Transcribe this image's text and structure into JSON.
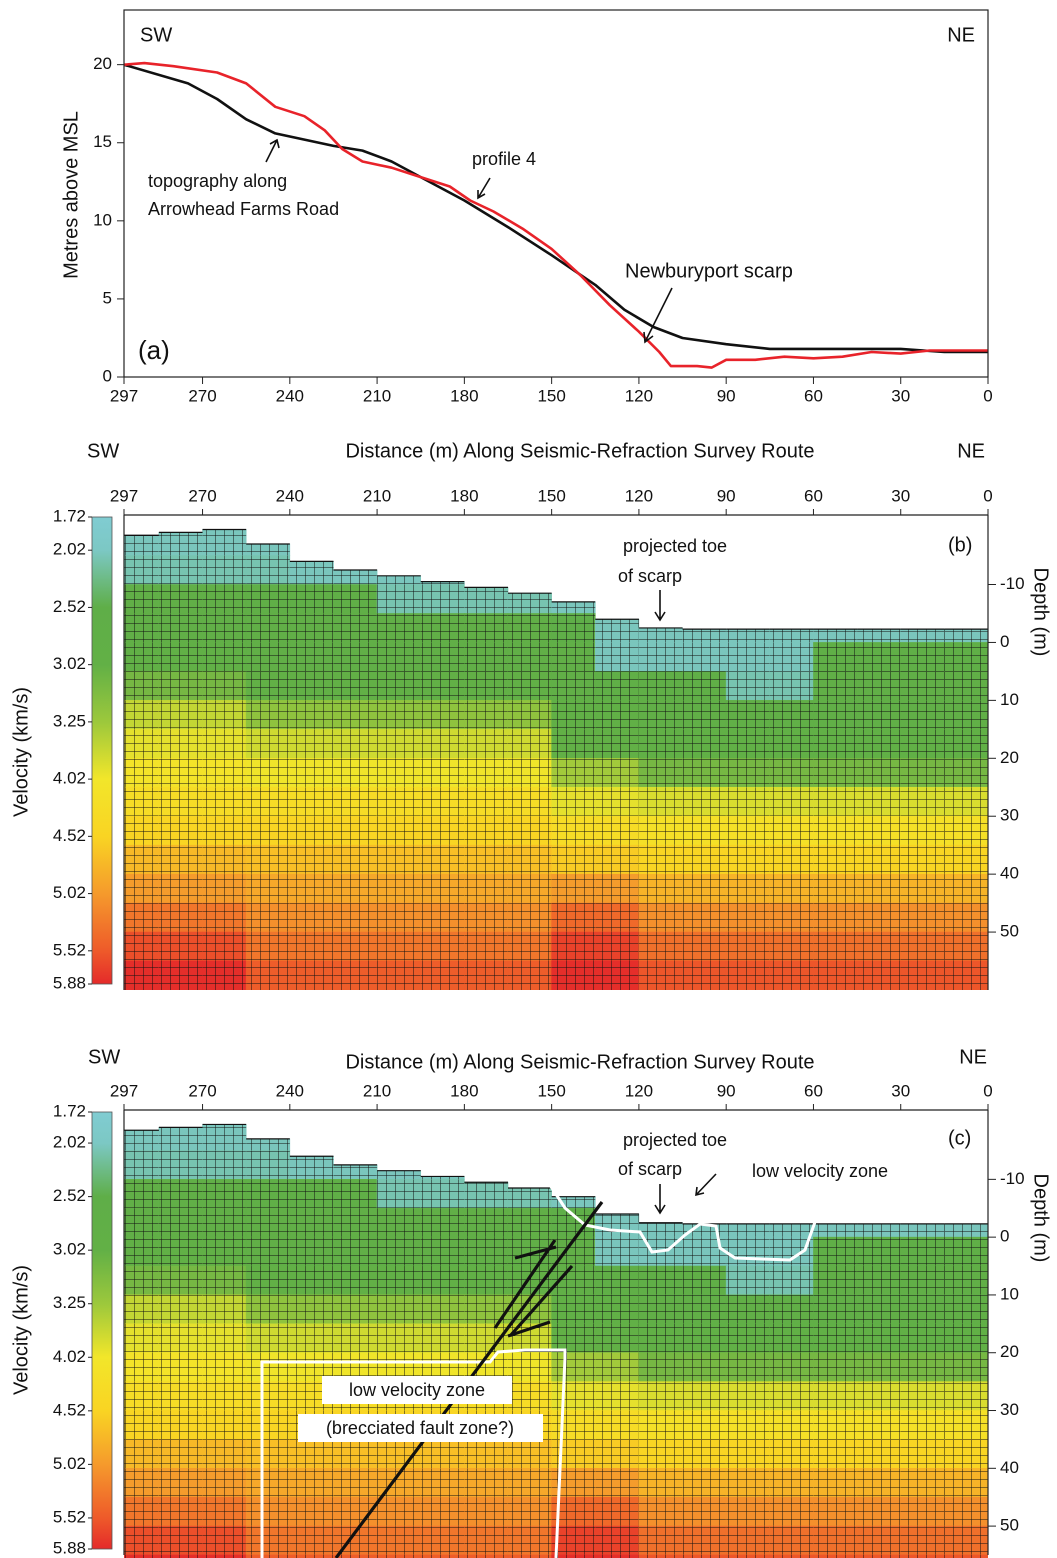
{
  "chart_data": [
    {
      "type": "line",
      "y_label": "Metres above MSL",
      "left_label": "SW",
      "right_label": "NE",
      "panel_label": "(a)",
      "annotations": [
        "topography along",
        "Arrowhead Farms Road",
        "profile 4",
        "Newburyport scarp"
      ],
      "xlim": [
        297,
        0
      ],
      "xticks": [
        297,
        270,
        240,
        210,
        180,
        150,
        120,
        90,
        60,
        30,
        0
      ],
      "ylim": [
        0,
        23.5
      ],
      "yticks": [
        0,
        5,
        10,
        15,
        20
      ],
      "series": [
        {
          "color": "#111111",
          "x": [
            297,
            275,
            265,
            255,
            245,
            235,
            225,
            215,
            205,
            195,
            180,
            165,
            150,
            135,
            125,
            115,
            105,
            90,
            75,
            60,
            30,
            15,
            0
          ],
          "values": [
            20,
            18.8,
            17.8,
            16.5,
            15.6,
            15.2,
            14.8,
            14.5,
            13.8,
            12.8,
            11.3,
            9.6,
            7.8,
            5.9,
            4.3,
            3.2,
            2.5,
            2.1,
            1.8,
            1.8,
            1.8,
            1.6,
            1.6
          ]
        },
        {
          "color": "#e8232a",
          "x": [
            297,
            290,
            280,
            265,
            255,
            245,
            235,
            228,
            222,
            215,
            205,
            195,
            185,
            178,
            170,
            160,
            150,
            140,
            130,
            120,
            113,
            109,
            100,
            95,
            90,
            80,
            70,
            60,
            50,
            40,
            30,
            20,
            10,
            0
          ],
          "values": [
            20,
            20.1,
            19.9,
            19.5,
            18.8,
            17.3,
            16.7,
            15.8,
            14.6,
            13.8,
            13.4,
            12.8,
            12.2,
            11.3,
            10.6,
            9.5,
            8.2,
            6.5,
            4.6,
            2.9,
            1.6,
            0.7,
            0.7,
            0.6,
            1.1,
            1.1,
            1.3,
            1.2,
            1.3,
            1.6,
            1.5,
            1.7,
            1.7,
            1.7
          ]
        }
      ]
    },
    {
      "type": "heatmap",
      "x_label": "Distance (m) Along Seismic-Refraction Survey Route",
      "left_label": "SW",
      "right_label": "NE",
      "y_label": "Depth (m)",
      "panel_label": "(b)",
      "annotations": [
        "projected toe",
        "of scarp"
      ],
      "xlim": [
        297,
        0
      ],
      "xticks": [
        297,
        270,
        240,
        210,
        180,
        150,
        120,
        90,
        60,
        30,
        0
      ],
      "ylim": [
        60,
        -22
      ],
      "yticks": [
        -10,
        0,
        10,
        20,
        30,
        40,
        50
      ],
      "colorbar": {
        "label": "Velocity (km/s)",
        "ticks": [
          1.72,
          2.02,
          2.52,
          3.02,
          3.25,
          4.02,
          4.52,
          5.02,
          5.52,
          5.88
        ],
        "colors": [
          "#80ccd2",
          "#7cc8c4",
          "#5fae48",
          "#62b046",
          "#9cc83c",
          "#f2e62a",
          "#f9d423",
          "#f59a2c",
          "#ee5a2a",
          "#e42a2a"
        ]
      },
      "x_edges": [
        297,
        285,
        270,
        255,
        240,
        225,
        210,
        195,
        180,
        165,
        150,
        135,
        120,
        105,
        90,
        75,
        60,
        45,
        30,
        15,
        0
      ],
      "depth_edges": [
        -20,
        -15,
        -10,
        -5,
        0,
        5,
        10,
        15,
        20,
        25,
        30,
        35,
        40,
        45,
        50,
        55,
        60
      ],
      "surface": [
        -18.5,
        -19,
        -19.5,
        -17,
        -14,
        -12.5,
        -11.5,
        -10.5,
        -9.5,
        -8.5,
        -7,
        -4,
        -2.5,
        -2.3,
        -2.3,
        -2.3,
        -2.3,
        -2.3,
        -2.3,
        -2.3
      ],
      "values": [
        [
          2.05,
          2.05,
          2.05,
          2.05,
          null,
          null,
          null,
          null,
          null,
          null,
          null,
          null,
          null,
          null,
          null,
          null,
          null,
          null,
          null,
          null
        ],
        [
          2.1,
          2.1,
          2.1,
          2.1,
          2.05,
          2.05,
          2.05,
          2.05,
          null,
          null,
          null,
          null,
          null,
          null,
          null,
          null,
          null,
          null,
          null,
          null
        ],
        [
          2.8,
          2.8,
          2.8,
          2.7,
          2.7,
          2.7,
          2.1,
          2.1,
          2.1,
          2.1,
          2.05,
          null,
          null,
          null,
          null,
          null,
          null,
          null,
          null,
          null
        ],
        [
          2.85,
          2.85,
          2.85,
          2.8,
          2.8,
          2.8,
          2.8,
          2.8,
          2.8,
          2.8,
          2.6,
          2.05,
          2.05,
          2.05,
          2.05,
          2.05,
          2.05,
          2.05,
          2.05,
          2.05
        ],
        [
          2.9,
          2.9,
          2.9,
          2.85,
          2.85,
          2.85,
          2.85,
          2.85,
          2.85,
          2.85,
          2.8,
          2.05,
          2.05,
          2.05,
          2.05,
          2.05,
          2.7,
          2.7,
          2.7,
          2.7
        ],
        [
          3.1,
          3.1,
          3.1,
          2.95,
          2.95,
          2.95,
          2.95,
          2.95,
          2.95,
          2.95,
          2.85,
          2.7,
          2.7,
          2.7,
          2.1,
          2.1,
          2.8,
          2.8,
          2.8,
          2.8
        ],
        [
          3.6,
          3.6,
          3.6,
          3.2,
          3.2,
          3.2,
          3.2,
          3.2,
          3.2,
          3.2,
          2.9,
          2.9,
          2.85,
          2.85,
          2.85,
          2.85,
          2.85,
          2.85,
          2.85,
          2.85
        ],
        [
          3.9,
          3.9,
          3.9,
          3.7,
          3.7,
          3.7,
          3.7,
          3.7,
          3.7,
          3.7,
          3,
          3,
          2.9,
          2.9,
          2.9,
          2.9,
          2.9,
          2.9,
          2.9,
          2.9
        ],
        [
          4.1,
          4.1,
          4.1,
          4,
          4,
          4,
          4,
          4,
          4,
          4,
          3.3,
          3.3,
          3.1,
          3.1,
          3.1,
          3.1,
          3.1,
          3.1,
          3.1,
          3.1
        ],
        [
          4.3,
          4.3,
          4.3,
          4.3,
          4.3,
          4.3,
          4.3,
          4.3,
          4.3,
          4.3,
          3.9,
          3.9,
          3.8,
          3.8,
          3.8,
          3.8,
          3.8,
          3.8,
          3.8,
          3.8
        ],
        [
          4.5,
          4.5,
          4.5,
          4.5,
          4.5,
          4.5,
          4.5,
          4.5,
          4.5,
          4.5,
          4.3,
          4.3,
          4.2,
          4.2,
          4.2,
          4.2,
          4.2,
          4.2,
          4.2,
          4.2
        ],
        [
          4.75,
          4.75,
          4.75,
          4.7,
          4.7,
          4.7,
          4.7,
          4.7,
          4.7,
          4.7,
          4.6,
          4.6,
          4.5,
          4.5,
          4.5,
          4.5,
          4.5,
          4.5,
          4.5,
          4.5
        ],
        [
          5,
          5,
          5,
          4.9,
          4.9,
          4.9,
          4.9,
          4.9,
          4.9,
          4.9,
          5,
          5,
          4.8,
          4.8,
          4.8,
          4.8,
          4.8,
          4.8,
          4.8,
          4.8
        ],
        [
          5.3,
          5.3,
          5.3,
          5.1,
          5.1,
          5.1,
          5.1,
          5.1,
          5.1,
          5.1,
          5.4,
          5.4,
          5.1,
          5.1,
          5.1,
          5.1,
          5.1,
          5.1,
          5.1,
          5.1
        ],
        [
          5.6,
          5.6,
          5.6,
          5.3,
          5.3,
          5.3,
          5.3,
          5.3,
          5.3,
          5.3,
          5.7,
          5.7,
          5.35,
          5.35,
          5.35,
          5.35,
          5.35,
          5.35,
          5.35,
          5.35
        ],
        [
          5.85,
          5.85,
          5.85,
          5.5,
          5.5,
          5.5,
          5.5,
          5.5,
          5.5,
          5.5,
          5.85,
          5.85,
          5.55,
          5.55,
          5.55,
          5.55,
          5.55,
          5.55,
          5.55,
          5.55
        ]
      ]
    },
    {
      "type": "heatmap",
      "x_label": "Distance (m) Along Seismic-Refraction Survey Route",
      "left_label": "SW",
      "right_label": "NE",
      "y_label": "Depth (m)",
      "panel_label": "(c)",
      "annotations": [
        "projected toe",
        "of scarp",
        "low velocity zone",
        "low velocity zone",
        "(brecciated fault zone?)"
      ],
      "xlim": [
        297,
        0
      ],
      "xticks": [
        297,
        270,
        240,
        210,
        180,
        150,
        120,
        90,
        60,
        30,
        0
      ],
      "ylim": [
        55,
        -22
      ],
      "yticks": [
        -10,
        0,
        10,
        20,
        30,
        40,
        50
      ],
      "colorbar": {
        "label": "Velocity (km/s)",
        "ticks": [
          1.72,
          2.02,
          2.52,
          3.02,
          3.25,
          4.02,
          4.52,
          5.02,
          5.52,
          5.88
        ],
        "colors": [
          "#80ccd2",
          "#7cc8c4",
          "#5fae48",
          "#62b046",
          "#9cc83c",
          "#f2e62a",
          "#f9d423",
          "#f59a2c",
          "#ee5a2a",
          "#e42a2a"
        ]
      },
      "x_edges": [
        297,
        285,
        270,
        255,
        240,
        225,
        210,
        195,
        180,
        165,
        150,
        135,
        120,
        105,
        90,
        75,
        60,
        45,
        30,
        15,
        0
      ],
      "depth_edges": [
        -20,
        -15,
        -10,
        -5,
        0,
        5,
        10,
        15,
        20,
        25,
        30,
        35,
        40,
        45,
        50,
        55,
        60
      ],
      "surface": [
        -18.5,
        -19,
        -19.5,
        -17,
        -14,
        -12.5,
        -11.5,
        -10.5,
        -9.5,
        -8.5,
        -7,
        -4,
        -2.5,
        -2.3,
        -2.3,
        -2.3,
        -2.3,
        -2.3,
        -2.3,
        -2.3
      ],
      "values": [
        [
          2.05,
          2.05,
          2.05,
          2.05,
          null,
          null,
          null,
          null,
          null,
          null,
          null,
          null,
          null,
          null,
          null,
          null,
          null,
          null,
          null,
          null
        ],
        [
          2.1,
          2.1,
          2.1,
          2.1,
          2.05,
          2.05,
          2.05,
          2.05,
          null,
          null,
          null,
          null,
          null,
          null,
          null,
          null,
          null,
          null,
          null,
          null
        ],
        [
          2.8,
          2.8,
          2.8,
          2.7,
          2.7,
          2.7,
          2.1,
          2.1,
          2.1,
          2.1,
          2.05,
          null,
          null,
          null,
          null,
          null,
          null,
          null,
          null,
          null
        ],
        [
          2.85,
          2.85,
          2.85,
          2.8,
          2.8,
          2.8,
          2.8,
          2.8,
          2.8,
          2.8,
          2.6,
          2.05,
          2.05,
          2.05,
          2.05,
          2.05,
          2.05,
          2.05,
          2.05,
          2.05
        ],
        [
          2.9,
          2.9,
          2.9,
          2.85,
          2.85,
          2.85,
          2.85,
          2.85,
          2.85,
          2.85,
          2.8,
          2.05,
          2.05,
          2.05,
          2.05,
          2.05,
          2.7,
          2.7,
          2.7,
          2.7
        ],
        [
          3.1,
          3.1,
          3.1,
          2.95,
          2.95,
          2.95,
          2.95,
          2.95,
          2.95,
          2.95,
          2.85,
          2.7,
          2.7,
          2.7,
          2.1,
          2.1,
          2.8,
          2.8,
          2.8,
          2.8
        ],
        [
          3.6,
          3.6,
          3.6,
          3.2,
          3.2,
          3.2,
          3.2,
          3.2,
          3.2,
          3.2,
          2.9,
          2.9,
          2.85,
          2.85,
          2.85,
          2.85,
          2.85,
          2.85,
          2.85,
          2.85
        ],
        [
          3.9,
          3.9,
          3.9,
          3.7,
          3.7,
          3.7,
          3.7,
          3.7,
          3.7,
          3.7,
          3,
          3,
          2.9,
          2.9,
          2.9,
          2.9,
          2.9,
          2.9,
          2.9,
          2.9
        ],
        [
          4.1,
          4.1,
          4.1,
          4,
          4,
          4,
          4,
          4,
          4,
          4,
          3.3,
          3.3,
          3.1,
          3.1,
          3.1,
          3.1,
          3.1,
          3.1,
          3.1,
          3.1
        ],
        [
          4.3,
          4.3,
          4.3,
          4.3,
          4.3,
          4.3,
          4.3,
          4.3,
          4.3,
          4.3,
          3.9,
          3.9,
          3.8,
          3.8,
          3.8,
          3.8,
          3.8,
          3.8,
          3.8,
          3.8
        ],
        [
          4.5,
          4.5,
          4.5,
          4.5,
          4.5,
          4.5,
          4.5,
          4.5,
          4.5,
          4.5,
          4.3,
          4.3,
          4.2,
          4.2,
          4.2,
          4.2,
          4.2,
          4.2,
          4.2,
          4.2
        ],
        [
          4.75,
          4.75,
          4.75,
          4.7,
          4.7,
          4.7,
          4.7,
          4.7,
          4.7,
          4.7,
          4.6,
          4.6,
          4.5,
          4.5,
          4.5,
          4.5,
          4.5,
          4.5,
          4.5,
          4.5
        ],
        [
          5,
          5,
          5,
          4.9,
          4.9,
          4.9,
          4.9,
          4.9,
          4.9,
          4.9,
          5,
          5,
          4.8,
          4.8,
          4.8,
          4.8,
          4.8,
          4.8,
          4.8,
          4.8
        ],
        [
          5.3,
          5.3,
          5.3,
          5.1,
          5.1,
          5.1,
          5.1,
          5.1,
          5.1,
          5.1,
          5.4,
          5.4,
          5.1,
          5.1,
          5.1,
          5.1,
          5.1,
          5.1,
          5.1,
          5.1
        ],
        [
          5.6,
          5.6,
          5.6,
          5.3,
          5.3,
          5.3,
          5.3,
          5.3,
          5.3,
          5.3,
          5.7,
          5.7,
          5.35,
          5.35,
          5.35,
          5.35,
          5.35,
          5.35,
          5.35,
          5.35
        ],
        [
          5.85,
          5.85,
          5.85,
          5.5,
          5.5,
          5.5,
          5.5,
          5.5,
          5.5,
          5.5,
          5.85,
          5.85,
          5.55,
          5.55,
          5.55,
          5.55,
          5.55,
          5.55,
          5.55,
          5.55
        ]
      ]
    }
  ]
}
